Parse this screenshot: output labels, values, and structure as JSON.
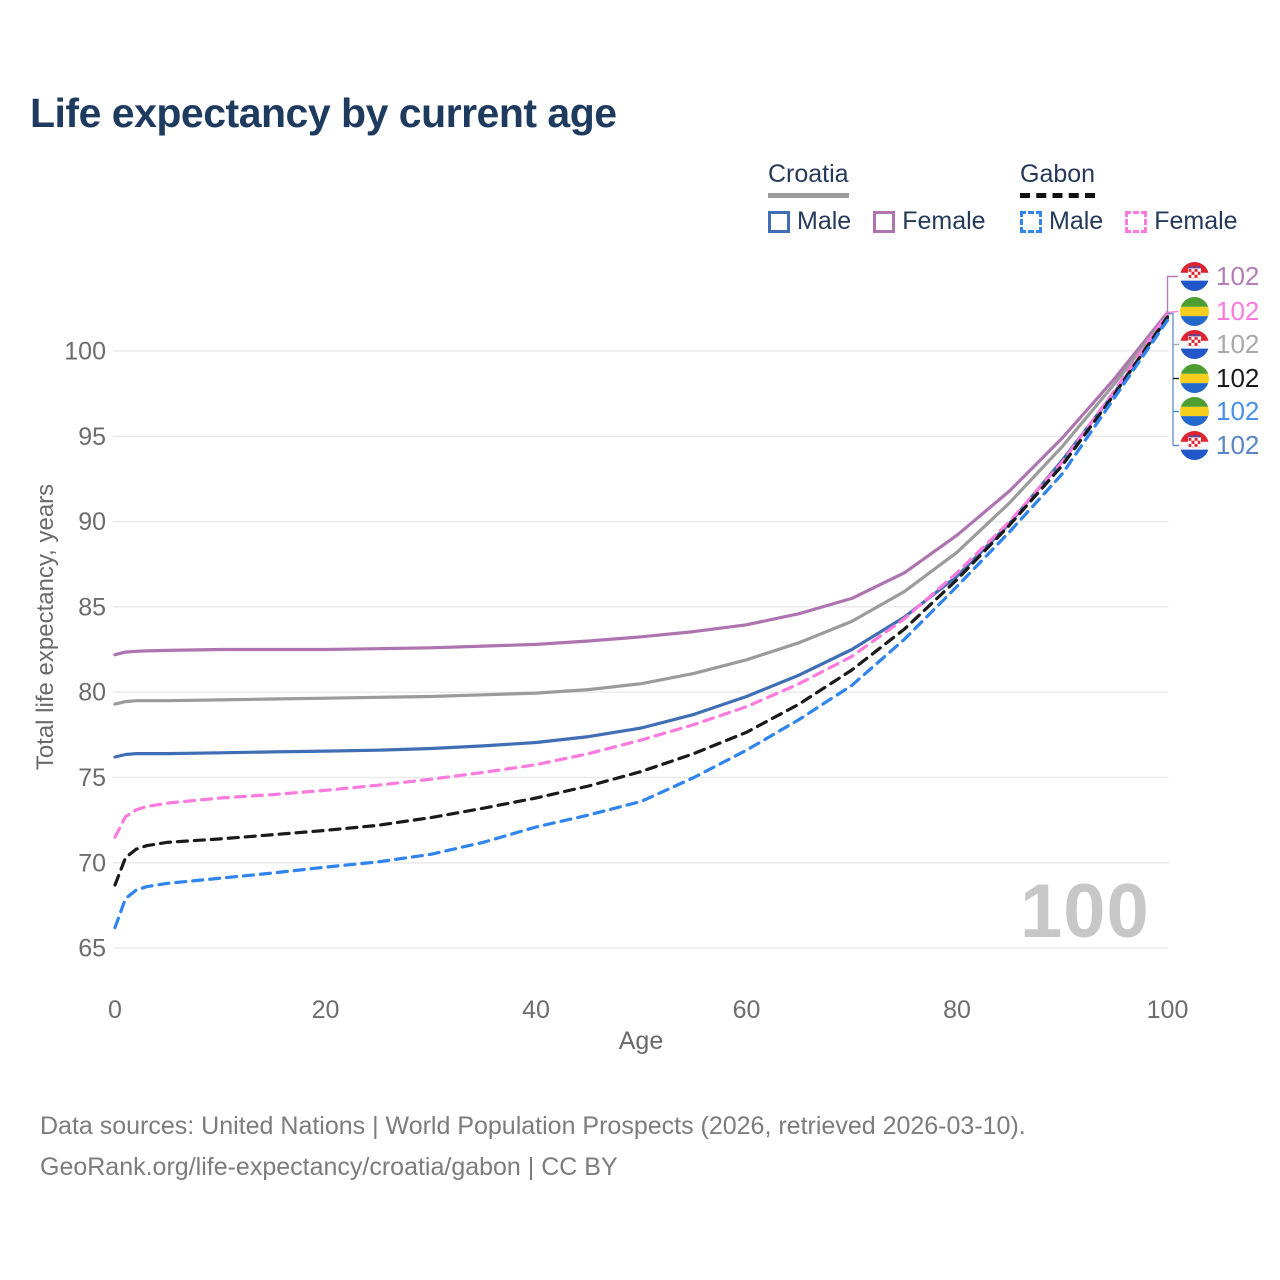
{
  "title": "Life expectancy by current age",
  "legend": {
    "groups": [
      {
        "name": "Croatia",
        "line_style": "solid",
        "underline_color": "#9B9B9B",
        "items": [
          {
            "label": "Male",
            "color": "#3F6EB5"
          },
          {
            "label": "Female",
            "color": "#AE74B0"
          }
        ]
      },
      {
        "name": "Gabon",
        "line_style": "dashed",
        "underline_color": "#111111",
        "items": [
          {
            "label": "Male",
            "color": "#2F84EE"
          },
          {
            "label": "Female",
            "color": "#FF7ADE"
          }
        ]
      }
    ]
  },
  "chart_data": {
    "type": "line",
    "title": "Life expectancy by current age",
    "xlabel": "Age",
    "ylabel": "Total life expectancy, years",
    "x_ticks": [
      0,
      20,
      40,
      60,
      80,
      100
    ],
    "y_ticks": [
      65,
      70,
      75,
      80,
      85,
      90,
      95,
      100
    ],
    "xlim": [
      0,
      100
    ],
    "ylim": [
      63.5,
      103
    ],
    "grid": "horizontal",
    "legend_position": "top-right",
    "x": [
      0,
      1,
      2,
      3,
      5,
      10,
      15,
      20,
      25,
      30,
      35,
      40,
      45,
      50,
      55,
      60,
      65,
      70,
      75,
      80,
      85,
      90,
      95,
      100
    ],
    "series": [
      {
        "id": "croatia-female",
        "country": "Croatia",
        "sex": "Female",
        "color": "#AE74B0",
        "dash": false,
        "values": [
          82.2,
          82.35,
          82.4,
          82.42,
          82.45,
          82.5,
          82.5,
          82.5,
          82.55,
          82.6,
          82.7,
          82.8,
          83.0,
          83.25,
          83.55,
          83.95,
          84.6,
          85.5,
          87.0,
          89.2,
          91.8,
          94.9,
          98.4,
          102.25
        ]
      },
      {
        "id": "croatia-all",
        "country": "Croatia",
        "sex": "Both",
        "color": "#9B9B9B",
        "dash": false,
        "values": [
          79.3,
          79.45,
          79.5,
          79.5,
          79.5,
          79.55,
          79.6,
          79.65,
          79.7,
          79.75,
          79.85,
          79.95,
          80.15,
          80.5,
          81.1,
          81.9,
          82.9,
          84.15,
          85.9,
          88.2,
          91.1,
          94.4,
          98.1,
          102.1
        ]
      },
      {
        "id": "croatia-male",
        "country": "Croatia",
        "sex": "Male",
        "color": "#3F6EB5",
        "dash": false,
        "values": [
          76.2,
          76.35,
          76.4,
          76.4,
          76.4,
          76.45,
          76.5,
          76.55,
          76.6,
          76.7,
          76.85,
          77.05,
          77.4,
          77.9,
          78.7,
          79.75,
          81.0,
          82.5,
          84.4,
          86.8,
          89.9,
          93.6,
          97.6,
          101.9
        ]
      },
      {
        "id": "gabon-female",
        "country": "Gabon",
        "sex": "Female",
        "color": "#FF7ADE",
        "dash": true,
        "values": [
          71.5,
          72.7,
          73.1,
          73.3,
          73.5,
          73.8,
          74.0,
          74.25,
          74.55,
          74.9,
          75.3,
          75.75,
          76.4,
          77.2,
          78.1,
          79.15,
          80.5,
          82.1,
          84.3,
          87.0,
          90.0,
          93.5,
          97.7,
          102.2
        ]
      },
      {
        "id": "gabon-all",
        "country": "Gabon",
        "sex": "Both",
        "color": "#1A1A1A",
        "dash": true,
        "values": [
          68.7,
          70.3,
          70.8,
          71.0,
          71.2,
          71.4,
          71.65,
          71.9,
          72.2,
          72.65,
          73.2,
          73.8,
          74.5,
          75.35,
          76.4,
          77.65,
          79.3,
          81.3,
          83.7,
          86.6,
          89.8,
          93.3,
          97.5,
          102.0
        ]
      },
      {
        "id": "gabon-male",
        "country": "Gabon",
        "sex": "Male",
        "color": "#2F84EE",
        "dash": true,
        "values": [
          66.2,
          67.9,
          68.4,
          68.6,
          68.8,
          69.1,
          69.4,
          69.75,
          70.05,
          70.5,
          71.2,
          72.1,
          72.8,
          73.6,
          75.0,
          76.6,
          78.4,
          80.4,
          83.1,
          86.2,
          89.4,
          92.8,
          97.3,
          101.8
        ]
      }
    ]
  },
  "end_labels": [
    {
      "flag": "croatia",
      "text": "102",
      "color": "#B37EB3"
    },
    {
      "flag": "gabon",
      "text": "102",
      "color": "#FF7ADE"
    },
    {
      "flag": "croatia",
      "text": "102",
      "color": "#A8A8A8"
    },
    {
      "flag": "gabon",
      "text": "102",
      "color": "#1A1A1A"
    },
    {
      "flag": "gabon",
      "text": "102",
      "color": "#4A90E8"
    },
    {
      "flag": "croatia",
      "text": "102",
      "color": "#5B84C4"
    }
  ],
  "watermark": "100",
  "footer": {
    "line1": "Data sources: United Nations | World Population Prospects (2026, retrieved 2026-03-10).",
    "line2": "GeoRank.org/life-expectancy/croatia/gabon | CC BY"
  }
}
